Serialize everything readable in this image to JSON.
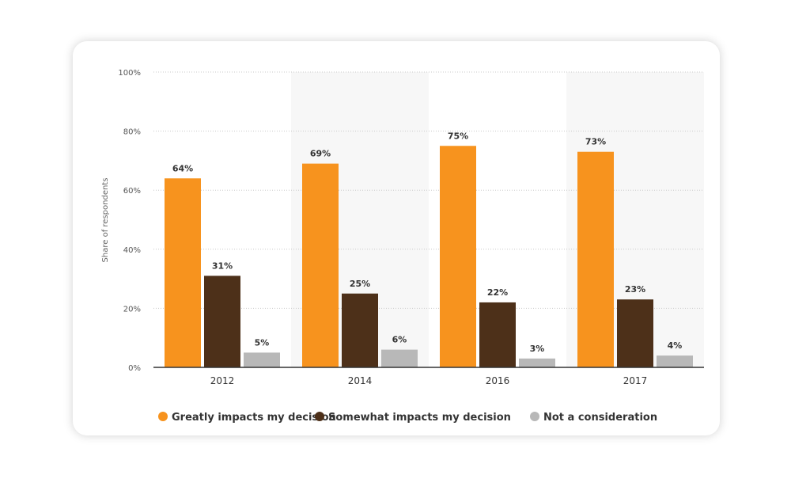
{
  "chart_data": {
    "type": "bar",
    "categories": [
      "2012",
      "2014",
      "2016",
      "2017"
    ],
    "series": [
      {
        "name": "Greatly impacts my decision",
        "color": "#f7931e",
        "values": [
          64,
          69,
          75,
          73
        ]
      },
      {
        "name": "Somewhat impacts my decision",
        "color": "#4d3019",
        "values": [
          31,
          25,
          22,
          23
        ]
      },
      {
        "name": "Not a consideration",
        "color": "#b8b8b8",
        "values": [
          5,
          6,
          3,
          4
        ]
      }
    ],
    "data_labels": [
      [
        "64%",
        "31%",
        "5%"
      ],
      [
        "69%",
        "25%",
        "6%"
      ],
      [
        "75%",
        "22%",
        "3%"
      ],
      [
        "73%",
        "23%",
        "4%"
      ]
    ],
    "yticks": [
      "0%",
      "20%",
      "40%",
      "60%",
      "80%",
      "100%"
    ],
    "ylabel": "Share of respondents",
    "ylim": [
      0,
      100
    ],
    "grid": true,
    "legend_position": "bottom"
  }
}
